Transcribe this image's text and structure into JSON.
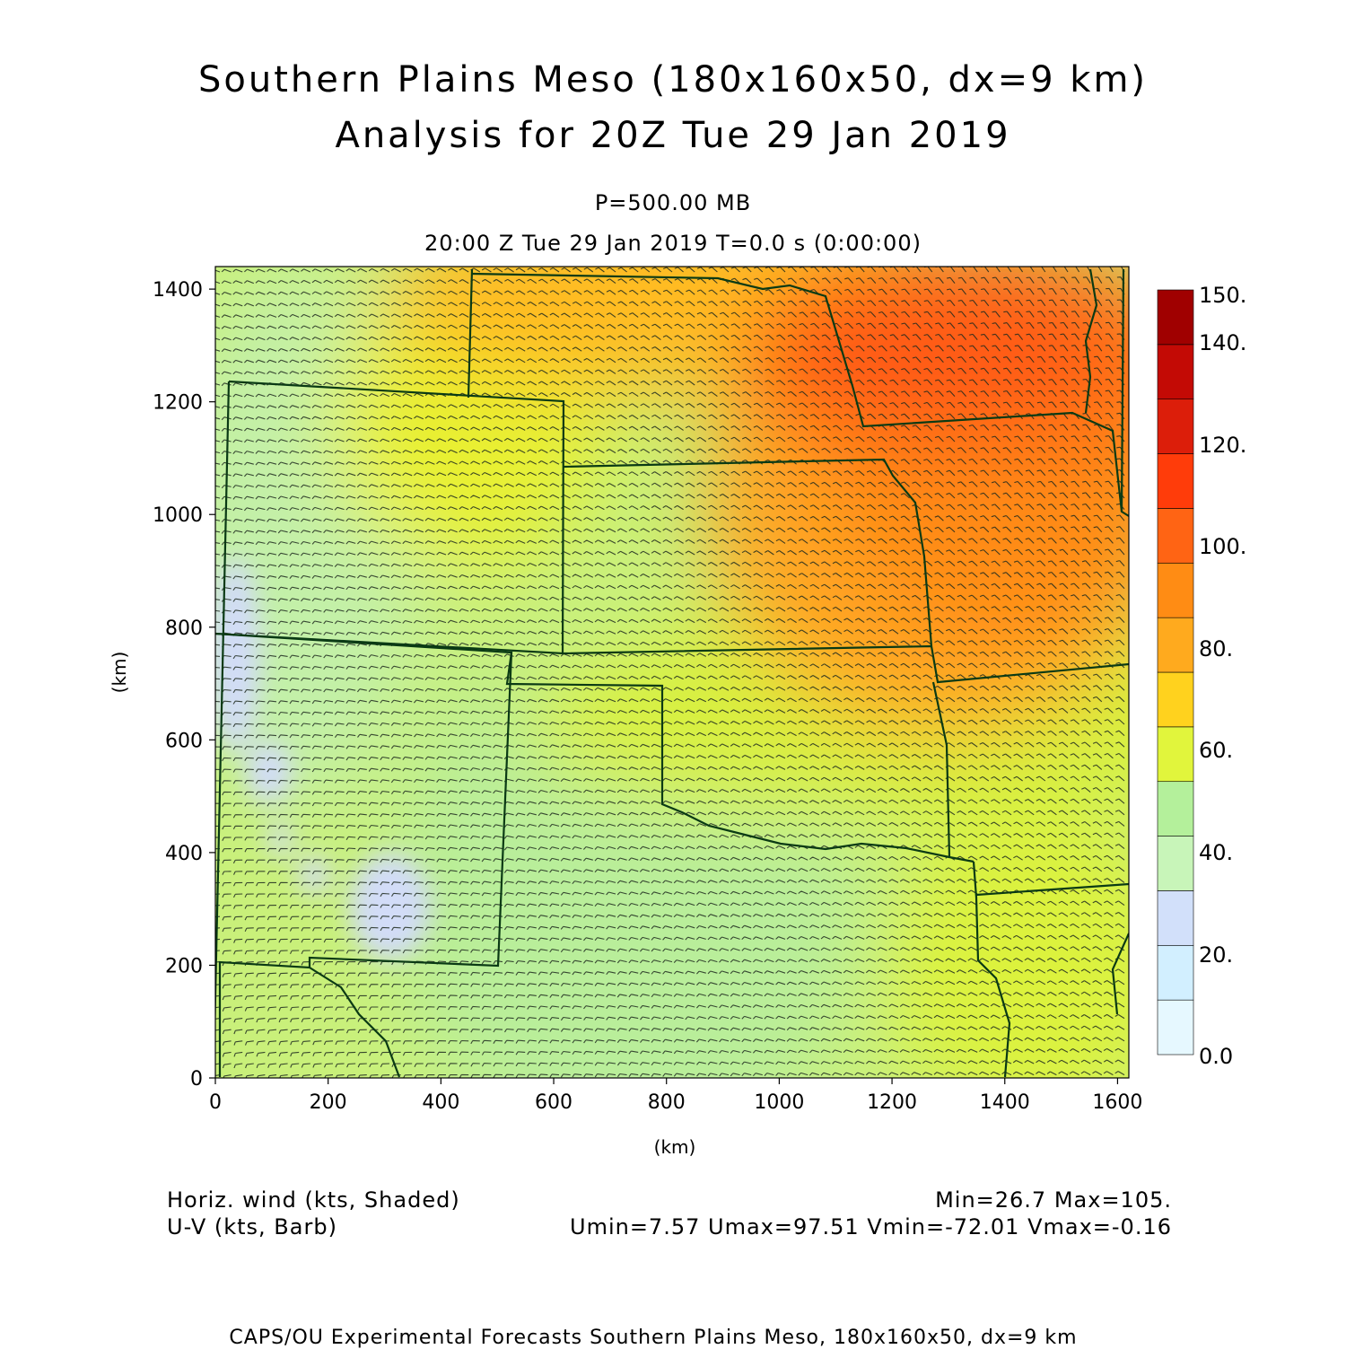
{
  "titles": {
    "line1": "Southern Plains Meso (180x160x50, dx=9 km)",
    "line2": "Analysis for 20Z Tue 29 Jan 2019",
    "level": "P=500.00 MB",
    "time": "20:00 Z Tue 29 Jan 2019    T=0.0 s (0:00:00)"
  },
  "axes": {
    "x_label": "(km)",
    "y_label": "(km)",
    "x_ticks": [
      "0",
      "200",
      "400",
      "600",
      "800",
      "1000",
      "1200",
      "1400",
      "1600"
    ],
    "y_ticks": [
      "0",
      "200",
      "400",
      "600",
      "800",
      "1000",
      "1200",
      "1400"
    ],
    "x_range_km": [
      0,
      1620
    ],
    "y_range_km": [
      0,
      1440
    ]
  },
  "colorbar": {
    "labels": [
      "150.",
      "140.",
      "120.",
      "100.",
      "80.",
      "60.",
      "40.",
      "20.",
      "0.0"
    ],
    "colors_bottom_to_top": [
      "#e6f8ff",
      "#d2efff",
      "#d2e0fa",
      "#c8f5b9",
      "#b4f09b",
      "#e1f53c",
      "#ffd21e",
      "#ffaa1e",
      "#ff8c14",
      "#ff6414",
      "#ff3c0a",
      "#dc1e0a",
      "#c30a05",
      "#a00000"
    ]
  },
  "legend": {
    "field1": "Horiz. wind (kts, Shaded)",
    "field2": "U-V (kts, Barb)",
    "minmax": "Min=26.7 Max=105.",
    "uv_minmax": "Umin=7.57 Umax=97.51 Vmin=-72.01 Vmax=-0.16"
  },
  "footer": "CAPS/OU Experimental Forecasts  Southern Plains Meso, 180x160x50, dx=9 km",
  "map_colors": {
    "border": "#0a3a14",
    "barb": "#1e2a1e",
    "frame": "#000000"
  }
}
